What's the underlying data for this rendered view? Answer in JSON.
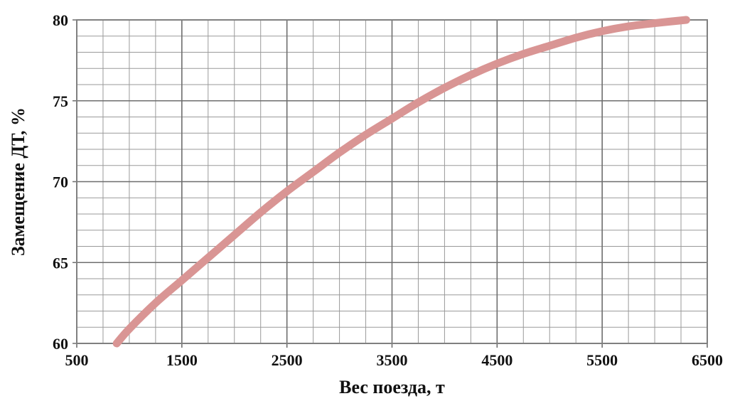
{
  "chart_data": {
    "type": "line",
    "title": "",
    "xlabel": "Вес поезда, т",
    "ylabel": "Замещение ДТ, %",
    "xlim": [
      500,
      6500
    ],
    "ylim": [
      60,
      80
    ],
    "x_ticks": [
      500,
      1500,
      2500,
      3500,
      4500,
      5500,
      6500
    ],
    "y_ticks": [
      60,
      65,
      70,
      75,
      80
    ],
    "x_tick_labels": [
      "500",
      "1500",
      "2500",
      "3500",
      "4500",
      "5500",
      "6500"
    ],
    "y_tick_labels": [
      "60",
      "65",
      "70",
      "75",
      "80"
    ],
    "x_minor_step": 250,
    "y_minor_step": 1,
    "grid": true,
    "legend": "none",
    "series": [
      {
        "color": "#d99594",
        "x": [
          880,
          1000,
          1250,
          1500,
          1750,
          2000,
          2250,
          2500,
          2750,
          3000,
          3250,
          3500,
          3750,
          4000,
          4250,
          4500,
          4750,
          5000,
          5250,
          5500,
          5750,
          6000,
          6300
        ],
        "y": [
          60.0,
          60.9,
          62.5,
          63.9,
          65.3,
          66.7,
          68.1,
          69.4,
          70.6,
          71.8,
          72.9,
          73.9,
          74.9,
          75.8,
          76.6,
          77.3,
          77.9,
          78.4,
          78.9,
          79.3,
          79.6,
          79.8,
          80.0
        ]
      }
    ]
  }
}
